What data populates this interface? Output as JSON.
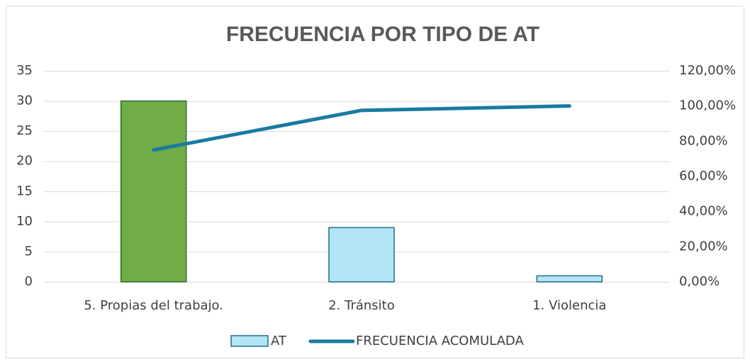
{
  "chart_data": {
    "type": "bar",
    "title": "FRECUENCIA POR TIPO DE AT",
    "categories": [
      "5. Propias del trabajo.",
      "2. Tránsito",
      "1. Violencia"
    ],
    "series": [
      {
        "name": "AT",
        "type": "bar",
        "color": "#b4e5f5",
        "edge_color": "#1f6e8c",
        "colors": [
          "#70ad47",
          "#b4e5f5",
          "#b4e5f5"
        ],
        "edge_colors": [
          "#2e6a30",
          "#1f6e8c",
          "#1f6e8c"
        ],
        "values": [
          30,
          9,
          1
        ]
      },
      {
        "name": "FRECUENCIA ACOMULADA",
        "type": "line",
        "axis": "y2",
        "color": "#1a7aa0",
        "values": [
          75,
          97.5,
          100
        ]
      }
    ],
    "ylim": [
      0,
      35
    ],
    "yticks": [
      0,
      5,
      10,
      15,
      20,
      25,
      30,
      35
    ],
    "y2lim": [
      0,
      120
    ],
    "y2ticks": [
      {
        "value": 0,
        "label": "0,00%"
      },
      {
        "value": 20,
        "label": "20,00%"
      },
      {
        "value": 40,
        "label": "40,00%"
      },
      {
        "value": 60,
        "label": "60,00%"
      },
      {
        "value": 80,
        "label": "80,00%"
      },
      {
        "value": 100,
        "label": "100,00%"
      },
      {
        "value": 120,
        "label": "120,00%"
      }
    ],
    "grid": true,
    "legend": "bottom"
  }
}
